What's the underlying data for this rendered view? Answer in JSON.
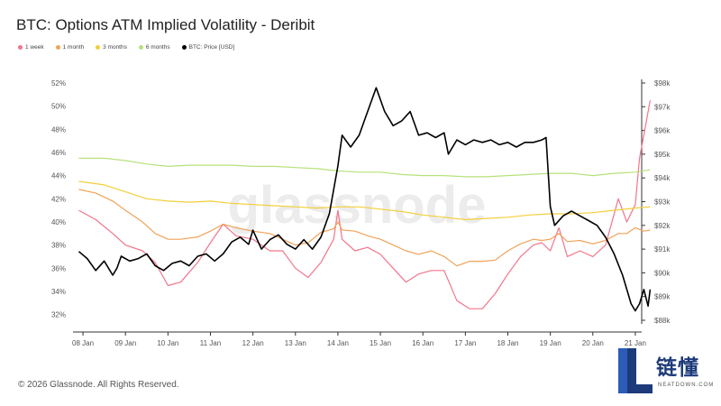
{
  "header": {
    "title": "BTC: Options ATM Implied Volatility - Deribit"
  },
  "footer": {
    "copyright": "© 2026 Glassnode. All Rights Reserved."
  },
  "watermark": {
    "text": "glassnode"
  },
  "badge": {
    "main": "链懂",
    "sub": "NEATDOWN.COM"
  },
  "colors": {
    "w1": "#f0768b",
    "m1": "#f0a35a",
    "m3": "#f2cf3a",
    "m6": "#b5e27a",
    "price": "#000000",
    "axis": "#555555",
    "watermark": "#ececec",
    "badge": "#1d3b7a"
  },
  "chart_data": {
    "type": "line",
    "title": "BTC: Options ATM Implied Volatility - Deribit",
    "legend_position": "top-left",
    "grid": false,
    "x_tick_labels": [
      "08 Jan",
      "09 Jan",
      "10 Jan",
      "11 Jan",
      "12 Jan",
      "13 Jan",
      "14 Jan",
      "15 Jan",
      "16 Jan",
      "17 Jan",
      "18 Jan",
      "19 Jan",
      "20 Jan",
      "21 Jan"
    ],
    "xlim_days": [
      7.85,
      21.15
    ],
    "y_left": {
      "ticks": [
        "52%",
        "50%",
        "48%",
        "46%",
        "44%",
        "42%",
        "40%",
        "38%",
        "36%",
        "34%",
        "32%"
      ],
      "range": [
        31.5,
        52
      ]
    },
    "y_right": {
      "ticks": [
        "$98k",
        "$97k",
        "$96k",
        "$95k",
        "$94k",
        "$93k",
        "$92k",
        "$91k",
        "$90k",
        "$89k",
        "$88k"
      ],
      "range": [
        88000,
        98000
      ]
    },
    "series": [
      {
        "name": "1 week",
        "key": "w1",
        "axis": "left",
        "points": [
          [
            7.9,
            41
          ],
          [
            8.3,
            40.2
          ],
          [
            8.7,
            39
          ],
          [
            9.0,
            38
          ],
          [
            9.4,
            37.5
          ],
          [
            9.7,
            36.5
          ],
          [
            10.0,
            34.5
          ],
          [
            10.3,
            34.8
          ],
          [
            10.7,
            36.5
          ],
          [
            11.0,
            38.2
          ],
          [
            11.3,
            39.8
          ],
          [
            11.6,
            38.8
          ],
          [
            12.0,
            38.5
          ],
          [
            12.4,
            37.5
          ],
          [
            12.7,
            37.5
          ],
          [
            13.0,
            36
          ],
          [
            13.3,
            35.2
          ],
          [
            13.6,
            36.5
          ],
          [
            13.9,
            38.5
          ],
          [
            14.0,
            41
          ],
          [
            14.1,
            38.5
          ],
          [
            14.4,
            37.5
          ],
          [
            14.7,
            37.8
          ],
          [
            15.0,
            37.2
          ],
          [
            15.3,
            36
          ],
          [
            15.6,
            34.8
          ],
          [
            15.9,
            35.5
          ],
          [
            16.2,
            35.8
          ],
          [
            16.5,
            35.8
          ],
          [
            16.8,
            33.2
          ],
          [
            17.1,
            32.5
          ],
          [
            17.4,
            32.5
          ],
          [
            17.7,
            33.8
          ],
          [
            18.0,
            35.5
          ],
          [
            18.3,
            37
          ],
          [
            18.6,
            38
          ],
          [
            18.8,
            38.2
          ],
          [
            19.0,
            37.5
          ],
          [
            19.2,
            39.5
          ],
          [
            19.4,
            37
          ],
          [
            19.7,
            37.5
          ],
          [
            20.0,
            37
          ],
          [
            20.3,
            38
          ],
          [
            20.6,
            42
          ],
          [
            20.8,
            40
          ],
          [
            21.0,
            41.5
          ],
          [
            21.1,
            45.5
          ],
          [
            21.2,
            47.5
          ],
          [
            21.35,
            50.5
          ]
        ]
      },
      {
        "name": "1 month",
        "key": "m1",
        "axis": "left",
        "points": [
          [
            7.9,
            42.8
          ],
          [
            8.3,
            42.5
          ],
          [
            8.7,
            41.8
          ],
          [
            9.0,
            41
          ],
          [
            9.4,
            40
          ],
          [
            9.7,
            39
          ],
          [
            10.0,
            38.5
          ],
          [
            10.3,
            38.5
          ],
          [
            10.7,
            38.7
          ],
          [
            11.0,
            39.2
          ],
          [
            11.3,
            39.8
          ],
          [
            11.6,
            39.5
          ],
          [
            12.0,
            39.2
          ],
          [
            12.4,
            39
          ],
          [
            12.7,
            38.5
          ],
          [
            13.0,
            38
          ],
          [
            13.3,
            38.2
          ],
          [
            13.6,
            39.1
          ],
          [
            13.9,
            39.4
          ],
          [
            14.0,
            40
          ],
          [
            14.1,
            39.3
          ],
          [
            14.4,
            39.2
          ],
          [
            14.7,
            38.8
          ],
          [
            15.0,
            38.5
          ],
          [
            15.3,
            38
          ],
          [
            15.6,
            37.5
          ],
          [
            15.9,
            37.2
          ],
          [
            16.2,
            37.5
          ],
          [
            16.5,
            37
          ],
          [
            16.8,
            36.2
          ],
          [
            17.1,
            36.6
          ],
          [
            17.4,
            36.6
          ],
          [
            17.7,
            36.7
          ],
          [
            18.0,
            37.5
          ],
          [
            18.3,
            38.1
          ],
          [
            18.6,
            38.5
          ],
          [
            18.8,
            38.4
          ],
          [
            19.0,
            38.5
          ],
          [
            19.2,
            39
          ],
          [
            19.4,
            38.3
          ],
          [
            19.7,
            38.4
          ],
          [
            20.0,
            38.1
          ],
          [
            20.3,
            38.4
          ],
          [
            20.6,
            39
          ],
          [
            20.8,
            39
          ],
          [
            21.0,
            39.5
          ],
          [
            21.2,
            39.2
          ],
          [
            21.35,
            39.3
          ]
        ]
      },
      {
        "name": "3 months",
        "key": "m3",
        "axis": "left",
        "points": [
          [
            7.9,
            43.5
          ],
          [
            8.5,
            43.2
          ],
          [
            9.0,
            42.6
          ],
          [
            9.5,
            42
          ],
          [
            10.0,
            41.8
          ],
          [
            10.5,
            41.7
          ],
          [
            11.0,
            41.8
          ],
          [
            11.5,
            41.6
          ],
          [
            12.0,
            41.5
          ],
          [
            12.5,
            41.4
          ],
          [
            13.0,
            41.3
          ],
          [
            13.5,
            41.2
          ],
          [
            14.0,
            41.3
          ],
          [
            14.5,
            41.3
          ],
          [
            15.0,
            41.1
          ],
          [
            15.5,
            40.9
          ],
          [
            16.0,
            40.6
          ],
          [
            16.5,
            40.4
          ],
          [
            17.0,
            40.2
          ],
          [
            17.5,
            40.3
          ],
          [
            18.0,
            40.4
          ],
          [
            18.5,
            40.6
          ],
          [
            19.0,
            40.7
          ],
          [
            19.5,
            40.7
          ],
          [
            20.0,
            40.8
          ],
          [
            20.5,
            41
          ],
          [
            21.0,
            41.2
          ],
          [
            21.35,
            41.3
          ]
        ]
      },
      {
        "name": "6 months",
        "key": "m6",
        "axis": "left",
        "points": [
          [
            7.9,
            45.5
          ],
          [
            8.5,
            45.5
          ],
          [
            9.0,
            45.3
          ],
          [
            9.5,
            45
          ],
          [
            10.0,
            44.8
          ],
          [
            10.5,
            44.9
          ],
          [
            11.0,
            44.9
          ],
          [
            11.5,
            44.9
          ],
          [
            12.0,
            44.8
          ],
          [
            12.5,
            44.8
          ],
          [
            13.0,
            44.7
          ],
          [
            13.5,
            44.6
          ],
          [
            14.0,
            44.4
          ],
          [
            14.5,
            44.3
          ],
          [
            15.0,
            44.3
          ],
          [
            15.5,
            44.1
          ],
          [
            16.0,
            44.0
          ],
          [
            16.5,
            44.0
          ],
          [
            17.0,
            43.9
          ],
          [
            17.5,
            43.9
          ],
          [
            18.0,
            44.0
          ],
          [
            18.5,
            44.1
          ],
          [
            19.0,
            44.2
          ],
          [
            19.5,
            44.2
          ],
          [
            20.0,
            44.0
          ],
          [
            20.5,
            44.2
          ],
          [
            21.0,
            44.3
          ],
          [
            21.35,
            44.5
          ]
        ]
      },
      {
        "name": "BTC: Price [USD]",
        "key": "price",
        "axis": "right",
        "points": [
          [
            7.9,
            90.9
          ],
          [
            8.1,
            90.6
          ],
          [
            8.3,
            90.1
          ],
          [
            8.5,
            90.5
          ],
          [
            8.7,
            89.9
          ],
          [
            8.8,
            90.2
          ],
          [
            8.9,
            90.7
          ],
          [
            9.1,
            90.5
          ],
          [
            9.3,
            90.6
          ],
          [
            9.5,
            90.8
          ],
          [
            9.7,
            90.3
          ],
          [
            9.9,
            90.1
          ],
          [
            10.1,
            90.4
          ],
          [
            10.3,
            90.5
          ],
          [
            10.5,
            90.3
          ],
          [
            10.7,
            90.7
          ],
          [
            10.9,
            90.8
          ],
          [
            11.1,
            90.5
          ],
          [
            11.3,
            90.8
          ],
          [
            11.5,
            91.3
          ],
          [
            11.7,
            91.5
          ],
          [
            11.9,
            91.2
          ],
          [
            12.0,
            91.8
          ],
          [
            12.2,
            91.0
          ],
          [
            12.4,
            91.4
          ],
          [
            12.6,
            91.6
          ],
          [
            12.8,
            91.2
          ],
          [
            13.0,
            91.0
          ],
          [
            13.2,
            91.4
          ],
          [
            13.4,
            91.0
          ],
          [
            13.6,
            91.5
          ],
          [
            13.8,
            92.5
          ],
          [
            14.0,
            94.5
          ],
          [
            14.1,
            95.8
          ],
          [
            14.3,
            95.3
          ],
          [
            14.5,
            95.8
          ],
          [
            14.7,
            96.8
          ],
          [
            14.9,
            97.8
          ],
          [
            15.1,
            96.8
          ],
          [
            15.3,
            96.2
          ],
          [
            15.5,
            96.4
          ],
          [
            15.7,
            96.8
          ],
          [
            15.9,
            95.8
          ],
          [
            16.1,
            95.9
          ],
          [
            16.3,
            95.7
          ],
          [
            16.5,
            95.9
          ],
          [
            16.6,
            95.0
          ],
          [
            16.8,
            95.6
          ],
          [
            17.0,
            95.4
          ],
          [
            17.2,
            95.6
          ],
          [
            17.4,
            95.5
          ],
          [
            17.6,
            95.6
          ],
          [
            17.8,
            95.4
          ],
          [
            18.0,
            95.5
          ],
          [
            18.2,
            95.3
          ],
          [
            18.4,
            95.5
          ],
          [
            18.6,
            95.5
          ],
          [
            18.8,
            95.6
          ],
          [
            18.9,
            95.7
          ],
          [
            19.0,
            92.8
          ],
          [
            19.1,
            92.0
          ],
          [
            19.3,
            92.4
          ],
          [
            19.5,
            92.6
          ],
          [
            19.7,
            92.4
          ],
          [
            19.9,
            92.2
          ],
          [
            20.1,
            92.0
          ],
          [
            20.3,
            91.5
          ],
          [
            20.5,
            90.8
          ],
          [
            20.7,
            89.9
          ],
          [
            20.9,
            88.7
          ],
          [
            21.0,
            88.4
          ],
          [
            21.1,
            88.7
          ],
          [
            21.2,
            89.3
          ],
          [
            21.3,
            88.6
          ],
          [
            21.35,
            89.3
          ]
        ]
      }
    ]
  }
}
